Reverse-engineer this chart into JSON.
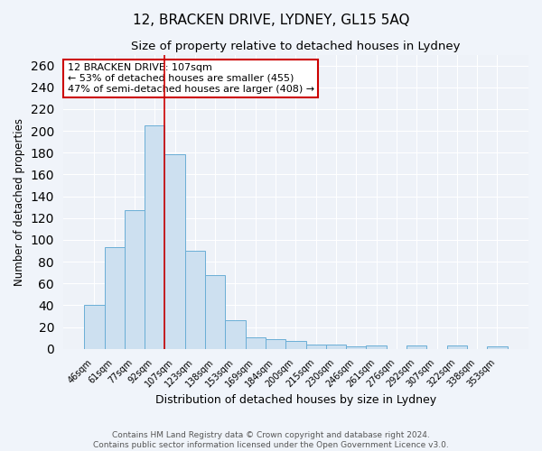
{
  "title": "12, BRACKEN DRIVE, LYDNEY, GL15 5AQ",
  "subtitle": "Size of property relative to detached houses in Lydney",
  "xlabel": "Distribution of detached houses by size in Lydney",
  "ylabel": "Number of detached properties",
  "bar_labels": [
    "46sqm",
    "61sqm",
    "77sqm",
    "92sqm",
    "107sqm",
    "123sqm",
    "138sqm",
    "153sqm",
    "169sqm",
    "184sqm",
    "200sqm",
    "215sqm",
    "230sqm",
    "246sqm",
    "261sqm",
    "276sqm",
    "292sqm",
    "307sqm",
    "322sqm",
    "338sqm",
    "353sqm"
  ],
  "bar_heights": [
    40,
    93,
    127,
    205,
    179,
    90,
    68,
    26,
    11,
    9,
    7,
    4,
    4,
    2,
    3,
    0,
    3,
    0,
    3,
    0,
    2
  ],
  "bar_color": "#cde0f0",
  "bar_edge_color": "#6aaed6",
  "vline_color": "#cc0000",
  "annotation_title": "12 BRACKEN DRIVE: 107sqm",
  "annotation_line1": "← 53% of detached houses are smaller (455)",
  "annotation_line2": "47% of semi-detached houses are larger (408) →",
  "annotation_box_color": "#ffffff",
  "annotation_box_edge_color": "#cc0000",
  "ylim": [
    0,
    270
  ],
  "yticks": [
    0,
    20,
    40,
    60,
    80,
    100,
    120,
    140,
    160,
    180,
    200,
    220,
    240,
    260
  ],
  "footer1": "Contains HM Land Registry data © Crown copyright and database right 2024.",
  "footer2": "Contains public sector information licensed under the Open Government Licence v3.0.",
  "fig_facecolor": "#f0f4fa",
  "plot_facecolor": "#eef2f8",
  "grid_color": "#ffffff",
  "title_fontsize": 11,
  "subtitle_fontsize": 9.5,
  "xlabel_fontsize": 9,
  "ylabel_fontsize": 8.5,
  "tick_fontsize": 7,
  "footer_fontsize": 6.5,
  "annotation_fontsize": 8
}
